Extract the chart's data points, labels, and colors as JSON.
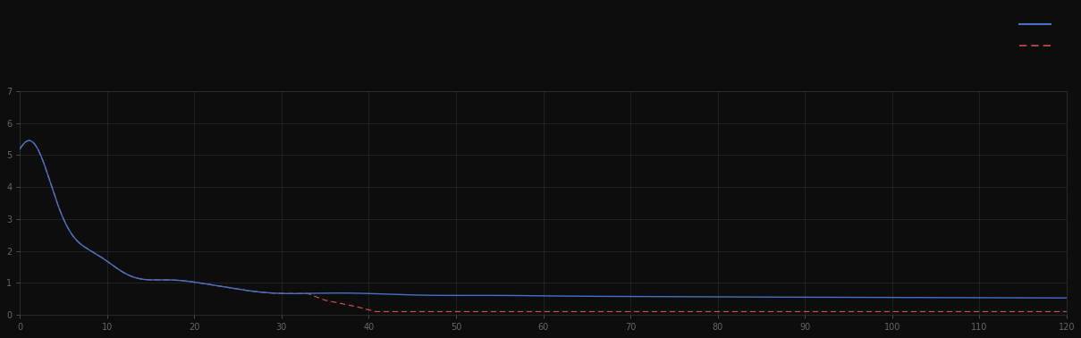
{
  "background_color": "#0d0d0d",
  "plot_bg_color": "#0d0d0d",
  "grid_color": "#2a2a2a",
  "line1_color": "#4472c4",
  "line2_color": "#c0504d",
  "xlim": [
    0,
    120
  ],
  "ylim": [
    0,
    7
  ],
  "figsize": [
    12.09,
    3.78
  ],
  "dpi": 100,
  "tick_color": "#666666",
  "spine_color": "#333333"
}
